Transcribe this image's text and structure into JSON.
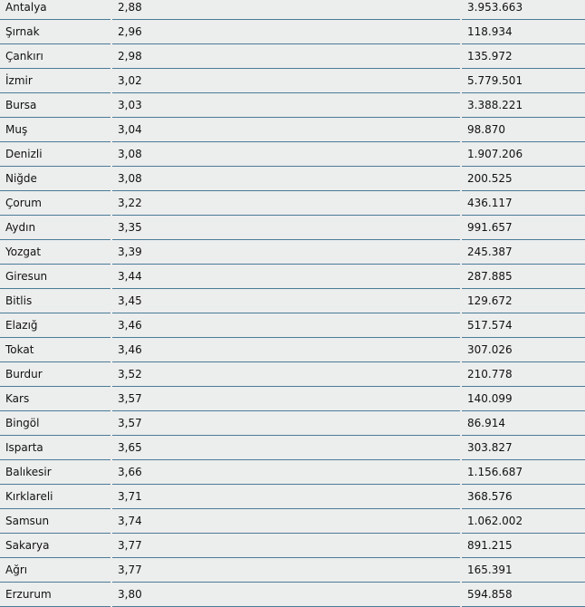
{
  "rows": [
    [
      "Antalya",
      "2,88",
      "3.953.663"
    ],
    [
      "Şırnak",
      "2,96",
      "118.934"
    ],
    [
      "Çankırı",
      "2,98",
      "135.972"
    ],
    [
      "İzmir",
      "3,02",
      "5.779.501"
    ],
    [
      "Bursa",
      "3,03",
      "3.388.221"
    ],
    [
      "Muş",
      "3,04",
      "98.870"
    ],
    [
      "Denizli",
      "3,08",
      "1.907.206"
    ],
    [
      "Niğde",
      "3,08",
      "200.525"
    ],
    [
      "Çorum",
      "3,22",
      "436.117"
    ],
    [
      "Aydın",
      "3,35",
      "991.657"
    ],
    [
      "Yozgat",
      "3,39",
      "245.387"
    ],
    [
      "Giresun",
      "3,44",
      "287.885"
    ],
    [
      "Bitlis",
      "3,45",
      "129.672"
    ],
    [
      "Elazığ",
      "3,46",
      "517.574"
    ],
    [
      "Tokat",
      "3,46",
      "307.026"
    ],
    [
      "Burdur",
      "3,52",
      "210.778"
    ],
    [
      "Kars",
      "3,57",
      "140.099"
    ],
    [
      "Bingöl",
      "3,57",
      "86.914"
    ],
    [
      "Isparta",
      "3,65",
      "303.827"
    ],
    [
      "Balıkesir",
      "3,66",
      "1.156.687"
    ],
    [
      "Kırklareli",
      "3,71",
      "368.576"
    ],
    [
      "Samsun",
      "3,74",
      "1.062.002"
    ],
    [
      "Sakarya",
      "3,77",
      "891.215"
    ],
    [
      "Ağrı",
      "3,77",
      "165.391"
    ],
    [
      "Erzurum",
      "3,80",
      "594.858"
    ]
  ],
  "colors": {
    "background": "#eceded",
    "row_line": "#4a7c98"
  }
}
